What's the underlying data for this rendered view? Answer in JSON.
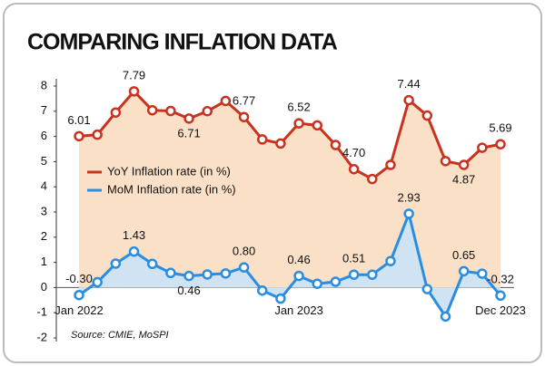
{
  "chart_data": {
    "type": "line",
    "title": "COMPARING INFLATION DATA",
    "source": "Source: CMIE, MoSPI",
    "categories": [
      "Jan 2022",
      null,
      null,
      null,
      null,
      null,
      null,
      null,
      null,
      null,
      null,
      null,
      "Jan 2023",
      null,
      null,
      null,
      null,
      null,
      null,
      null,
      null,
      null,
      null,
      "Dec 2023"
    ],
    "series": [
      {
        "name": "YoY Inflation rate (in %)",
        "color": "#c8321f",
        "values": [
          6.01,
          6.07,
          6.95,
          7.79,
          7.04,
          7.01,
          6.71,
          7.0,
          7.41,
          6.77,
          5.88,
          5.72,
          6.52,
          6.44,
          5.66,
          4.7,
          4.31,
          4.87,
          7.44,
          6.83,
          5.02,
          4.87,
          5.55,
          5.69
        ],
        "value_labels": [
          "6.01",
          null,
          null,
          "7.79",
          null,
          null,
          "6.71",
          null,
          null,
          "6.77",
          null,
          null,
          "6.52",
          null,
          null,
          "4.70",
          null,
          null,
          "7.44",
          null,
          null,
          "4.87",
          null,
          "5.69"
        ]
      },
      {
        "name": "MoM Inflation rate (in %)",
        "color": "#2a8de0",
        "values": [
          -0.3,
          0.21,
          0.95,
          1.43,
          0.94,
          0.58,
          0.46,
          0.52,
          0.56,
          0.8,
          -0.12,
          -0.44,
          0.46,
          0.15,
          0.23,
          0.51,
          0.51,
          1.05,
          2.93,
          -0.06,
          -1.15,
          0.65,
          0.55,
          -0.32
        ],
        "value_labels": [
          "-0.30",
          null,
          null,
          "1.43",
          null,
          null,
          "0.46",
          null,
          null,
          "0.80",
          null,
          null,
          "0.46",
          null,
          null,
          "0.51",
          null,
          null,
          "2.93",
          null,
          null,
          "0.65",
          null,
          "-0.32"
        ]
      }
    ],
    "ylim": [
      -2,
      8
    ],
    "yticks": [
      -2,
      -1,
      0,
      1,
      2,
      3,
      4,
      5,
      6,
      7,
      8
    ],
    "grid": false
  }
}
